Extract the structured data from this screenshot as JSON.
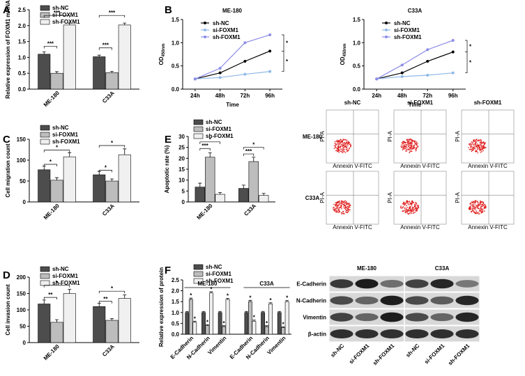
{
  "chart_data": [
    {
      "type": "bar",
      "label": "A",
      "ylabel": "Relative expression of FOXM1 mRNA",
      "categories": [
        "ME-180",
        "C33A"
      ],
      "series": [
        {
          "name": "sh-NC",
          "color": "#4d4d4d",
          "values": [
            1.1,
            1.02
          ],
          "errors": [
            0.07,
            0.05
          ]
        },
        {
          "name": "si-FOXM1",
          "color": "#bdbdbd",
          "values": [
            0.5,
            0.52
          ],
          "errors": [
            0.05,
            0.04
          ]
        },
        {
          "name": "sh-FOXM1",
          "color": "#f0f0f0",
          "values": [
            2.02,
            2.02
          ],
          "errors": [
            0.06,
            0.06
          ]
        }
      ],
      "ylim": [
        0,
        2.5
      ],
      "yticks": [
        {
          "value": 0,
          "label": "0.0"
        },
        {
          "value": 0.5,
          "label": "0.5"
        },
        {
          "value": 1,
          "label": "1.0"
        },
        {
          "value": 1.5,
          "label": "1.5"
        },
        {
          "value": 2,
          "label": "2.0"
        },
        {
          "value": 2.5,
          "label": "2.5"
        }
      ],
      "annotations": [
        "***",
        "***",
        "***",
        "***"
      ]
    },
    {
      "type": "line",
      "label": "B",
      "title": "ME-180",
      "ylabel": "OD",
      "ylabel_sub": "450nm",
      "xlabel": "Time",
      "categories": [
        "24h",
        "48h",
        "72h",
        "96h"
      ],
      "series": [
        {
          "name": "sh-NC",
          "color": "#000000",
          "values": [
            0.22,
            0.35,
            0.6,
            0.82
          ]
        },
        {
          "name": "si-FOXM1",
          "color": "#8fb8e8",
          "values": [
            0.22,
            0.25,
            0.32,
            0.38
          ]
        },
        {
          "name": "sh-FOXM1",
          "color": "#8c8ce8",
          "values": [
            0.22,
            0.45,
            1.0,
            1.17
          ]
        }
      ],
      "ylim": [
        0,
        1.5
      ],
      "yticks": [
        {
          "value": 0,
          "label": "0.0"
        },
        {
          "value": 0.5,
          "label": "0.5"
        },
        {
          "value": 1,
          "label": "1.0"
        },
        {
          "value": 1.5,
          "label": "1.5"
        }
      ],
      "annotations": [
        "*",
        "*"
      ]
    },
    {
      "type": "line",
      "title": "C33A",
      "ylabel": "OD",
      "ylabel_sub": "450nm",
      "xlabel": "Time",
      "categories": [
        "24h",
        "48h",
        "72h",
        "96h"
      ],
      "series": [
        {
          "name": "sh-NC",
          "color": "#000000",
          "values": [
            0.22,
            0.35,
            0.6,
            0.8
          ]
        },
        {
          "name": "si-FOXM1",
          "color": "#8fb8e8",
          "values": [
            0.22,
            0.27,
            0.3,
            0.35
          ]
        },
        {
          "name": "sh-FOXM1",
          "color": "#8c8ce8",
          "values": [
            0.22,
            0.52,
            0.85,
            1.05
          ]
        }
      ],
      "ylim": [
        0,
        1.5
      ],
      "yticks": [
        {
          "value": 0,
          "label": "0.0"
        },
        {
          "value": 0.5,
          "label": "0.5"
        },
        {
          "value": 1,
          "label": "1.0"
        },
        {
          "value": 1.5,
          "label": "1.5"
        }
      ],
      "annotations": [
        "*",
        "*"
      ]
    },
    {
      "type": "bar",
      "label": "C",
      "ylabel": "Cell migration count",
      "categories": [
        "ME-180",
        "C33A"
      ],
      "series": [
        {
          "name": "sh-NC",
          "color": "#4d4d4d",
          "values": [
            77,
            65
          ],
          "errors": [
            9,
            8
          ]
        },
        {
          "name": "si-FOXM1",
          "color": "#bdbdbd",
          "values": [
            52,
            50
          ],
          "errors": [
            6,
            5
          ]
        },
        {
          "name": "sh-FOXM1",
          "color": "#f0f0f0",
          "values": [
            108,
            113
          ],
          "errors": [
            10,
            14
          ]
        }
      ],
      "ylim": [
        0,
        150
      ],
      "yticks": [
        0,
        50,
        100,
        150
      ],
      "annotations": [
        "*",
        "*",
        "*",
        "*"
      ]
    },
    {
      "type": "bar",
      "label": "E",
      "ylabel": "Apoptotic rate (%)",
      "categories": [
        "ME-180",
        "C33A"
      ],
      "series": [
        {
          "name": "sh-NC",
          "color": "#4d4d4d",
          "values": [
            6.8,
            6.2
          ],
          "errors": [
            1.8,
            1.5
          ]
        },
        {
          "name": "si-FOXM1",
          "color": "#bdbdbd",
          "values": [
            20.5,
            18.5
          ],
          "errors": [
            2,
            2
          ]
        },
        {
          "name": "sh-FOXM1",
          "color": "#f0f0f0",
          "values": [
            3.5,
            3
          ],
          "errors": [
            0.8,
            0.9
          ]
        }
      ],
      "ylim": [
        0,
        30
      ],
      "yticks": [
        0,
        5,
        10,
        15,
        20,
        25,
        30
      ],
      "annotations": [
        "*",
        "***",
        "*",
        "***"
      ]
    },
    {
      "type": "bar",
      "label": "D",
      "ylabel": "Cell invasion count",
      "categories": [
        "ME-180",
        "C33A"
      ],
      "series": [
        {
          "name": "sh-NC",
          "color": "#4d4d4d",
          "values": [
            118,
            110
          ],
          "errors": [
            12,
            10
          ]
        },
        {
          "name": "si-FOXM1",
          "color": "#bdbdbd",
          "values": [
            62,
            68
          ],
          "errors": [
            8,
            5
          ]
        },
        {
          "name": "sh-FOXM1",
          "color": "#f0f0f0",
          "values": [
            150,
            135
          ],
          "errors": [
            13,
            11
          ]
        }
      ],
      "ylim": [
        0,
        200
      ],
      "yticks": [
        0,
        50,
        100,
        150,
        200
      ],
      "annotations": [
        "**",
        "*",
        "**",
        "*"
      ]
    },
    {
      "type": "bar",
      "label": "F",
      "ylabel": "Relative expression of protein",
      "group_labels": [
        "ME-180",
        "C33A"
      ],
      "categories": [
        "E-Cadherin",
        "N-Cadherin",
        "Vimentin",
        "E-Cadherin",
        "N-Cadherin",
        "Vimentin"
      ],
      "series": [
        {
          "name": "sh-NC",
          "color": "#4d4d4d",
          "values": [
            1,
            1,
            1,
            1,
            1,
            1
          ],
          "errors": [
            0.05,
            0.05,
            0.05,
            0.05,
            0.05,
            0.05
          ]
        },
        {
          "name": "si-FOXM1",
          "color": "#bdbdbd",
          "values": [
            1.6,
            0.4,
            0.35,
            1.5,
            0.35,
            0.3
          ],
          "errors": [
            0.06,
            0.04,
            0.04,
            0.06,
            0.04,
            0.04
          ]
        },
        {
          "name": "sh-FOXM1",
          "color": "#f0f0f0",
          "values": [
            0.55,
            1.9,
            1.6,
            0.6,
            1.4,
            1.5
          ],
          "errors": [
            0.05,
            0.06,
            0.05,
            0.05,
            0.05,
            0.05
          ]
        }
      ],
      "ylim": [
        0,
        2.5
      ],
      "yticks": [
        {
          "value": 0,
          "label": "0.0"
        },
        {
          "value": 0.5,
          "label": "0.5"
        },
        {
          "value": 1,
          "label": "1.0"
        },
        {
          "value": 1.5,
          "label": "1.5"
        },
        {
          "value": 2,
          "label": "2.0"
        },
        {
          "value": 2.5,
          "label": "2.5"
        }
      ],
      "star": "*"
    }
  ],
  "flow": {
    "columns": [
      "sh-NC",
      "si-FOXM1",
      "sh-FOXM1"
    ],
    "rows": [
      "ME-180",
      "C33A"
    ],
    "xlabel": "Annexin V-FITC",
    "ylabel": "PI-A"
  },
  "western": {
    "cells": [
      "ME-180",
      "C33A"
    ],
    "proteins": [
      "E-Cadherin",
      "N-Cadherin",
      "Vimentin",
      "β-actin"
    ],
    "lanes": [
      "sh-NC",
      "si-FOXM1",
      "sh-FOXM1",
      "sh-NC",
      "si-FOXM1",
      "sh-FOXM1"
    ]
  }
}
